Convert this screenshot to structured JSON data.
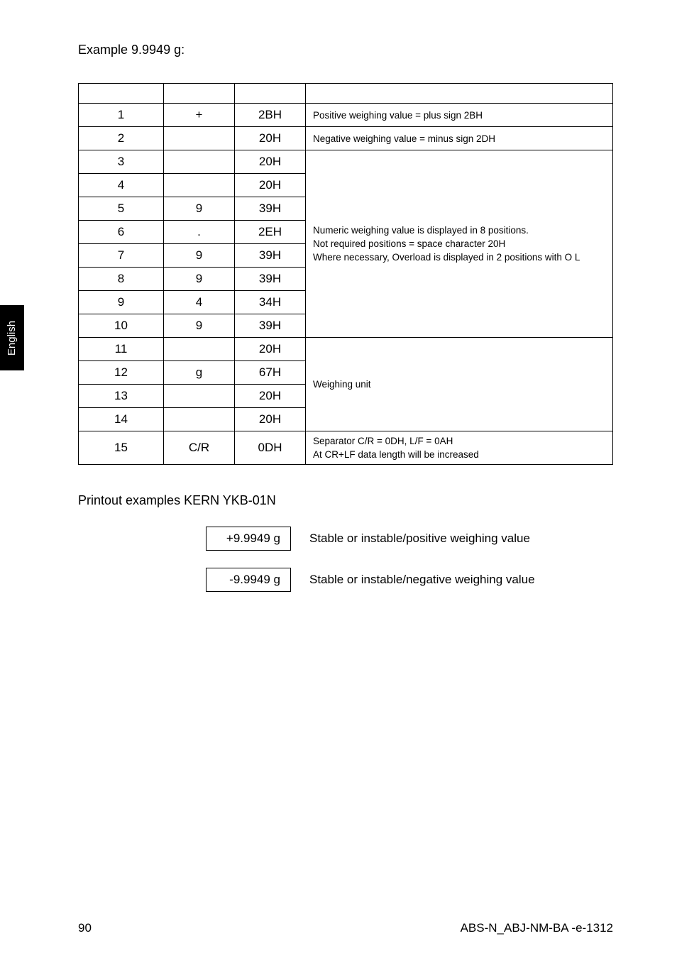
{
  "sideTab": "English",
  "exampleTitle": "Example  9.9949 g:",
  "table": {
    "colWidths": [
      "120px",
      "100px",
      "100px",
      "auto"
    ],
    "headerCells": [
      "",
      "",
      "",
      ""
    ],
    "rows": [
      {
        "num": "1",
        "sym": "+",
        "hex": "2BH",
        "right": {
          "span": 1,
          "text": "Positive weighing value = plus sign 2BH"
        }
      },
      {
        "num": "2",
        "sym": "",
        "hex": "20H",
        "right": {
          "span": 1,
          "text": "Negative weighing value = minus sign 2DH"
        }
      },
      {
        "num": "3",
        "sym": "",
        "hex": "20H",
        "right": {
          "span": 8,
          "lines": [
            "Numeric weighing value is displayed in 8 positions.",
            "Not required positions = space character 20H",
            "Where necessary, Overload is displayed in 2 positions with O L"
          ]
        }
      },
      {
        "num": "4",
        "sym": "",
        "hex": "20H"
      },
      {
        "num": "5",
        "sym": "9",
        "hex": "39H"
      },
      {
        "num": "6",
        "sym": ".",
        "hex": "2EH"
      },
      {
        "num": "7",
        "sym": "9",
        "hex": "39H"
      },
      {
        "num": "8",
        "sym": "9",
        "hex": "39H"
      },
      {
        "num": "9",
        "sym": "4",
        "hex": "34H"
      },
      {
        "num": "10",
        "sym": "9",
        "hex": "39H"
      },
      {
        "num": "11",
        "sym": "",
        "hex": "20H",
        "right": {
          "span": 4,
          "text": "Weighing unit"
        }
      },
      {
        "num": "12",
        "sym": "g",
        "hex": "67H"
      },
      {
        "num": "13",
        "sym": "",
        "hex": "20H"
      },
      {
        "num": "14",
        "sym": "",
        "hex": "20H"
      },
      {
        "num": "15",
        "sym": "C/R",
        "hex": "0DH",
        "right": {
          "span": 1,
          "lines": [
            "Separator C/R = 0DH, L/F = 0AH",
            "At CR+LF data length will be increased"
          ]
        }
      }
    ]
  },
  "printoutHeading": "Printout examples KERN YKB-01N",
  "printoutRows": [
    {
      "value": "+9.9949 g",
      "desc": "Stable or instable/positive weighing value"
    },
    {
      "value": "-9.9949 g",
      "desc": "Stable or instable/negative weighing value"
    }
  ],
  "footer": {
    "pageNum": "90",
    "docRef": "ABS-N_ABJ-NM-BA -e-1312"
  }
}
